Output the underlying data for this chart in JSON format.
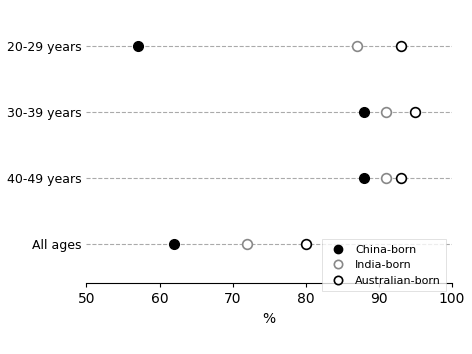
{
  "categories": [
    "20-29 years",
    "30-39 years",
    "40-49 years",
    "All ages"
  ],
  "china_born": [
    57,
    88,
    88,
    62
  ],
  "india_born": [
    87,
    91,
    91,
    72
  ],
  "australian_born": [
    93,
    95,
    93,
    80
  ],
  "xlim": [
    50,
    100
  ],
  "xticks": [
    50,
    60,
    70,
    80,
    90,
    100
  ],
  "xlabel": "%",
  "legend_labels": [
    "China-born",
    "India-born",
    "Australian-born"
  ],
  "china_color": "#000000",
  "india_color": "#888888",
  "australian_color": "#000000",
  "bg_color": "#ffffff",
  "grid_color": "#aaaaaa"
}
